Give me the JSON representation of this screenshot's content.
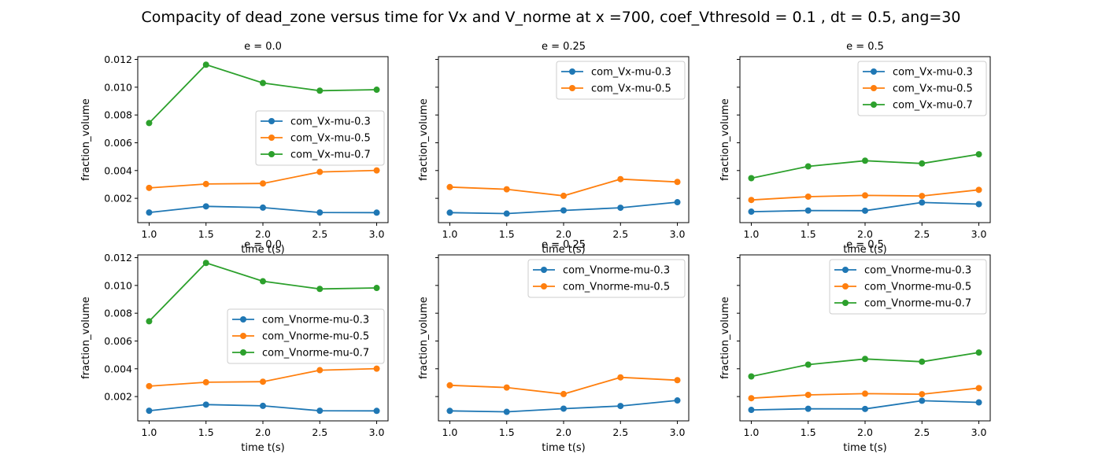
{
  "title": "Compacity of dead_zone versus time for Vx and V_norme at x =700, coef_Vthresold = 0.1 , dt = 0.5, ang=30",
  "colors": {
    "mu-0.3": "#1f77b4",
    "mu-0.5": "#ff7f0e",
    "mu-0.7": "#2ca02c"
  },
  "chart_data": [
    {
      "type": "line",
      "title": "e = 0.0",
      "xlabel": "time t(s)",
      "ylabel": "fraction_volume",
      "x": [
        1.0,
        1.5,
        2.0,
        2.5,
        3.0
      ],
      "xlim": [
        0.9,
        3.1
      ],
      "ylim": [
        0.00025,
        0.0122
      ],
      "xticks": [
        "1.0",
        "1.5",
        "2.0",
        "2.5",
        "3.0"
      ],
      "yticks": [
        "0.002",
        "0.004",
        "0.006",
        "0.008",
        "0.010",
        "0.012"
      ],
      "show_ytick_labels": true,
      "legend_placement": "center-right",
      "series": [
        {
          "name": "com_Vx-mu-0.3",
          "color_key": "mu-0.3",
          "values": [
            0.00098,
            0.00142,
            0.00133,
            0.00098,
            0.00097
          ]
        },
        {
          "name": "com_Vx-mu-0.5",
          "color_key": "mu-0.5",
          "values": [
            0.00275,
            0.00303,
            0.00307,
            0.0039,
            0.00401
          ]
        },
        {
          "name": "com_Vx-mu-0.7",
          "color_key": "mu-0.7",
          "values": [
            0.00742,
            0.01162,
            0.0103,
            0.00975,
            0.00982
          ]
        }
      ]
    },
    {
      "type": "line",
      "title": "e = 0.25",
      "xlabel": "time t(s)",
      "ylabel": "fraction_volume",
      "x": [
        1.0,
        1.5,
        2.0,
        2.5,
        3.0
      ],
      "xlim": [
        0.9,
        3.1
      ],
      "ylim": [
        0.00025,
        0.0122
      ],
      "xticks": [
        "1.0",
        "1.5",
        "2.0",
        "2.5",
        "3.0"
      ],
      "yticks": [
        "0.002",
        "0.004",
        "0.006",
        "0.008",
        "0.010",
        "0.012"
      ],
      "show_ytick_labels": false,
      "legend_placement": "upper right",
      "series": [
        {
          "name": "com_Vx-mu-0.3",
          "color_key": "mu-0.3",
          "values": [
            0.00097,
            0.0009,
            0.00113,
            0.00132,
            0.00172
          ]
        },
        {
          "name": "com_Vx-mu-0.5",
          "color_key": "mu-0.5",
          "values": [
            0.00281,
            0.00265,
            0.00218,
            0.00338,
            0.00318
          ]
        }
      ]
    },
    {
      "type": "line",
      "title": "e = 0.5",
      "xlabel": "time t(s)",
      "ylabel": "fraction_volume",
      "x": [
        1.0,
        1.5,
        2.0,
        2.5,
        3.0
      ],
      "xlim": [
        0.9,
        3.1
      ],
      "ylim": [
        0.00025,
        0.0122
      ],
      "xticks": [
        "1.0",
        "1.5",
        "2.0",
        "2.5",
        "3.0"
      ],
      "yticks": [
        "0.002",
        "0.004",
        "0.006",
        "0.008",
        "0.010",
        "0.012"
      ],
      "show_ytick_labels": false,
      "legend_placement": "upper right",
      "series": [
        {
          "name": "com_Vx-mu-0.3",
          "color_key": "mu-0.3",
          "values": [
            0.00104,
            0.00112,
            0.00111,
            0.0017,
            0.00158
          ]
        },
        {
          "name": "com_Vx-mu-0.5",
          "color_key": "mu-0.5",
          "values": [
            0.00188,
            0.00212,
            0.00221,
            0.00217,
            0.00261
          ]
        },
        {
          "name": "com_Vx-mu-0.7",
          "color_key": "mu-0.7",
          "values": [
            0.00345,
            0.0043,
            0.00471,
            0.00451,
            0.00517
          ]
        }
      ]
    },
    {
      "type": "line",
      "title": "e = 0.0",
      "xlabel": "time t(s)",
      "ylabel": "fraction_volume",
      "x": [
        1.0,
        1.5,
        2.0,
        2.5,
        3.0
      ],
      "xlim": [
        0.9,
        3.1
      ],
      "ylim": [
        0.00025,
        0.0122
      ],
      "xticks": [
        "1.0",
        "1.5",
        "2.0",
        "2.5",
        "3.0"
      ],
      "yticks": [
        "0.002",
        "0.004",
        "0.006",
        "0.008",
        "0.010",
        "0.012"
      ],
      "show_ytick_labels": true,
      "legend_placement": "center-right",
      "series": [
        {
          "name": "com_Vnorme-mu-0.3",
          "color_key": "mu-0.3",
          "values": [
            0.00098,
            0.00142,
            0.00133,
            0.00098,
            0.00097
          ]
        },
        {
          "name": "com_Vnorme-mu-0.5",
          "color_key": "mu-0.5",
          "values": [
            0.00275,
            0.00303,
            0.00307,
            0.0039,
            0.00401
          ]
        },
        {
          "name": "com_Vnorme-mu-0.7",
          "color_key": "mu-0.7",
          "values": [
            0.00742,
            0.01162,
            0.0103,
            0.00975,
            0.00982
          ]
        }
      ]
    },
    {
      "type": "line",
      "title": "e = 0.25",
      "xlabel": "time t(s)",
      "ylabel": "fraction_volume",
      "x": [
        1.0,
        1.5,
        2.0,
        2.5,
        3.0
      ],
      "xlim": [
        0.9,
        3.1
      ],
      "ylim": [
        0.00025,
        0.0122
      ],
      "xticks": [
        "1.0",
        "1.5",
        "2.0",
        "2.5",
        "3.0"
      ],
      "yticks": [
        "0.002",
        "0.004",
        "0.006",
        "0.008",
        "0.010",
        "0.012"
      ],
      "show_ytick_labels": false,
      "legend_placement": "upper right",
      "series": [
        {
          "name": "com_Vnorme-mu-0.3",
          "color_key": "mu-0.3",
          "values": [
            0.00097,
            0.0009,
            0.00113,
            0.00132,
            0.00172
          ]
        },
        {
          "name": "com_Vnorme-mu-0.5",
          "color_key": "mu-0.5",
          "values": [
            0.00281,
            0.00265,
            0.00218,
            0.00338,
            0.00318
          ]
        }
      ]
    },
    {
      "type": "line",
      "title": "e = 0.5",
      "xlabel": "time t(s)",
      "ylabel": "fraction_volume",
      "x": [
        1.0,
        1.5,
        2.0,
        2.5,
        3.0
      ],
      "xlim": [
        0.9,
        3.1
      ],
      "ylim": [
        0.00025,
        0.0122
      ],
      "xticks": [
        "1.0",
        "1.5",
        "2.0",
        "2.5",
        "3.0"
      ],
      "yticks": [
        "0.002",
        "0.004",
        "0.006",
        "0.008",
        "0.010",
        "0.012"
      ],
      "show_ytick_labels": false,
      "legend_placement": "upper right",
      "series": [
        {
          "name": "com_Vnorme-mu-0.3",
          "color_key": "mu-0.3",
          "values": [
            0.00104,
            0.00112,
            0.00111,
            0.0017,
            0.00158
          ]
        },
        {
          "name": "com_Vnorme-mu-0.5",
          "color_key": "mu-0.5",
          "values": [
            0.00188,
            0.00212,
            0.00221,
            0.00217,
            0.00261
          ]
        },
        {
          "name": "com_Vnorme-mu-0.7",
          "color_key": "mu-0.7",
          "values": [
            0.00345,
            0.0043,
            0.00471,
            0.00451,
            0.00517
          ]
        }
      ]
    }
  ]
}
